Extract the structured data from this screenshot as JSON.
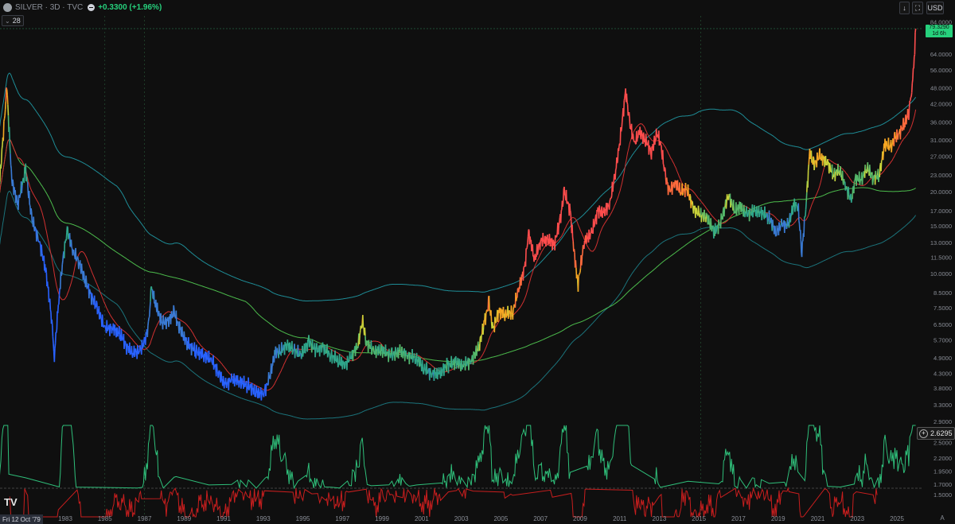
{
  "header": {
    "symbol": "SILVER · 3D · TVC",
    "change": "+0.3300 (+1.96%)"
  },
  "indicator_badge": {
    "value": "28"
  },
  "toolbar": {
    "currency": "USD"
  },
  "last_price": {
    "value": "79.3290",
    "countdown": "1d 6h"
  },
  "oscillator_last": {
    "value": "2.6295"
  },
  "crosshair_date": "Fri 12 Oct '79",
  "colors": {
    "background": "#0f0f0f",
    "upper_band": "#1e8c96",
    "lower_band": "#1e8c96",
    "long_ma": "#4cbb4c",
    "short_ma": "#d03030",
    "osc_positive": "#2fbf7a",
    "osc_negative": "#c81e1e",
    "price_tag": "#26d07c"
  },
  "chart_data": {
    "type": "line",
    "price_scale": "log",
    "x_axis_ticks": [
      "1983",
      "1985",
      "1987",
      "1989",
      "1991",
      "1993",
      "1995",
      "1997",
      "1999",
      "2001",
      "2003",
      "2005",
      "2007",
      "2009",
      "2011",
      "2013",
      "2015",
      "2017",
      "2019",
      "2021",
      "2023",
      "2025"
    ],
    "y_axis_ticks": [
      "84.0000",
      "79.3290",
      "64.0000",
      "56.0000",
      "48.0000",
      "42.0000",
      "36.0000",
      "31.0000",
      "27.0000",
      "23.0000",
      "20.0000",
      "17.0000",
      "15.0000",
      "13.0000",
      "11.5000",
      "10.0000",
      "8.5000",
      "7.5000",
      "6.5000",
      "5.7000",
      "4.9000",
      "4.3000",
      "3.8000",
      "3.3000",
      "2.9000",
      "2.5000",
      "2.2000",
      "1.9500",
      "1.7000",
      "1.5000"
    ],
    "series": [
      {
        "values": [
          [
            1979.6,
            18
          ],
          [
            1980.05,
            48
          ],
          [
            1980.3,
            22
          ],
          [
            1980.6,
            18
          ],
          [
            1981.0,
            24
          ],
          [
            1981.3,
            16
          ],
          [
            1981.7,
            13
          ],
          [
            1982.0,
            10.5
          ],
          [
            1982.3,
            7.0
          ],
          [
            1982.45,
            5.0
          ],
          [
            1982.7,
            8.5
          ],
          [
            1982.9,
            11.5
          ],
          [
            1983.1,
            14.5
          ],
          [
            1983.4,
            12
          ],
          [
            1983.7,
            11
          ],
          [
            1984.0,
            9.5
          ],
          [
            1984.3,
            8.3
          ],
          [
            1984.6,
            7.5
          ],
          [
            1985.0,
            6.3
          ],
          [
            1985.4,
            6.3
          ],
          [
            1985.8,
            6.0
          ],
          [
            1986.1,
            5.4
          ],
          [
            1986.4,
            5.1
          ],
          [
            1986.8,
            5.2
          ],
          [
            1987.0,
            5.6
          ],
          [
            1987.2,
            6.4
          ],
          [
            1987.35,
            8.8
          ],
          [
            1987.6,
            7.5
          ],
          [
            1987.9,
            6.6
          ],
          [
            1988.2,
            6.7
          ],
          [
            1988.5,
            7.2
          ],
          [
            1988.8,
            6.2
          ],
          [
            1989.2,
            5.5
          ],
          [
            1989.6,
            5.2
          ],
          [
            1990.0,
            5.0
          ],
          [
            1990.4,
            4.8
          ],
          [
            1990.8,
            4.2
          ],
          [
            1991.1,
            3.9
          ],
          [
            1991.4,
            4.1
          ],
          [
            1991.8,
            4.0
          ],
          [
            1992.2,
            3.9
          ],
          [
            1992.6,
            3.7
          ],
          [
            1993.0,
            3.6
          ],
          [
            1993.3,
            4.1
          ],
          [
            1993.6,
            5.1
          ],
          [
            1993.9,
            5.2
          ],
          [
            1994.2,
            5.5
          ],
          [
            1994.5,
            5.3
          ],
          [
            1994.9,
            5.0
          ],
          [
            1995.3,
            5.6
          ],
          [
            1995.7,
            5.2
          ],
          [
            1996.0,
            5.4
          ],
          [
            1996.4,
            5.0
          ],
          [
            1996.8,
            4.8
          ],
          [
            1997.1,
            4.6
          ],
          [
            1997.4,
            4.9
          ],
          [
            1997.6,
            5.2
          ],
          [
            1997.8,
            5.5
          ],
          [
            1998.0,
            6.8
          ],
          [
            1998.2,
            5.6
          ],
          [
            1998.6,
            5.2
          ],
          [
            1999.0,
            5.2
          ],
          [
            1999.5,
            5.0
          ],
          [
            1999.9,
            5.2
          ],
          [
            2000.3,
            5.0
          ],
          [
            2000.7,
            4.9
          ],
          [
            2001.1,
            4.5
          ],
          [
            2001.5,
            4.3
          ],
          [
            2001.9,
            4.3
          ],
          [
            2002.3,
            4.6
          ],
          [
            2002.7,
            4.7
          ],
          [
            2003.1,
            4.6
          ],
          [
            2003.5,
            4.8
          ],
          [
            2003.9,
            5.4
          ],
          [
            2004.2,
            6.8
          ],
          [
            2004.4,
            7.8
          ],
          [
            2004.6,
            6.2
          ],
          [
            2004.9,
            7.3
          ],
          [
            2005.2,
            7.1
          ],
          [
            2005.6,
            7.2
          ],
          [
            2005.9,
            8.8
          ],
          [
            2006.2,
            10.5
          ],
          [
            2006.4,
            14.2
          ],
          [
            2006.7,
            11.2
          ],
          [
            2007.0,
            13.2
          ],
          [
            2007.4,
            13.4
          ],
          [
            2007.7,
            12.8
          ],
          [
            2008.0,
            15.8
          ],
          [
            2008.2,
            20.0
          ],
          [
            2008.5,
            17.0
          ],
          [
            2008.75,
            11.0
          ],
          [
            2008.9,
            9.2
          ],
          [
            2009.2,
            13.0
          ],
          [
            2009.6,
            14.2
          ],
          [
            2009.9,
            17.0
          ],
          [
            2010.2,
            16.8
          ],
          [
            2010.5,
            18.0
          ],
          [
            2010.8,
            24.0
          ],
          [
            2011.0,
            30.0
          ],
          [
            2011.3,
            47.0
          ],
          [
            2011.5,
            36.0
          ],
          [
            2011.75,
            30.0
          ],
          [
            2012.0,
            33.0
          ],
          [
            2012.3,
            31.0
          ],
          [
            2012.6,
            28.0
          ],
          [
            2012.9,
            33.0
          ],
          [
            2013.1,
            29.0
          ],
          [
            2013.3,
            23.0
          ],
          [
            2013.5,
            20.0
          ],
          [
            2013.8,
            21.5
          ],
          [
            2014.1,
            20.0
          ],
          [
            2014.4,
            20.5
          ],
          [
            2014.7,
            17.5
          ],
          [
            2015.0,
            16.5
          ],
          [
            2015.4,
            16.0
          ],
          [
            2015.8,
            14.2
          ],
          [
            2016.1,
            15.5
          ],
          [
            2016.5,
            19.5
          ],
          [
            2016.8,
            17.0
          ],
          [
            2017.1,
            17.5
          ],
          [
            2017.4,
            16.5
          ],
          [
            2017.8,
            17.0
          ],
          [
            2018.1,
            16.8
          ],
          [
            2018.5,
            16.2
          ],
          [
            2018.9,
            14.2
          ],
          [
            2019.2,
            15.2
          ],
          [
            2019.5,
            15.0
          ],
          [
            2019.8,
            17.8
          ],
          [
            2020.0,
            17.8
          ],
          [
            2020.2,
            12.0
          ],
          [
            2020.4,
            17.5
          ],
          [
            2020.6,
            28.0
          ],
          [
            2020.8,
            25.0
          ],
          [
            2021.1,
            27.0
          ],
          [
            2021.5,
            25.5
          ],
          [
            2021.8,
            23.0
          ],
          [
            2022.1,
            24.0
          ],
          [
            2022.4,
            21.0
          ],
          [
            2022.7,
            18.5
          ],
          [
            2022.9,
            22.5
          ],
          [
            2023.2,
            22.0
          ],
          [
            2023.5,
            24.5
          ],
          [
            2023.8,
            22.5
          ],
          [
            2024.1,
            23.0
          ],
          [
            2024.4,
            30.0
          ],
          [
            2024.7,
            29.0
          ],
          [
            2024.9,
            31.5
          ],
          [
            2025.1,
            32.5
          ],
          [
            2025.4,
            36.0
          ],
          [
            2025.6,
            39.0
          ],
          [
            2025.75,
            48.0
          ],
          [
            2025.85,
            57.0
          ],
          [
            2025.95,
            79.3
          ]
        ]
      }
    ]
  }
}
